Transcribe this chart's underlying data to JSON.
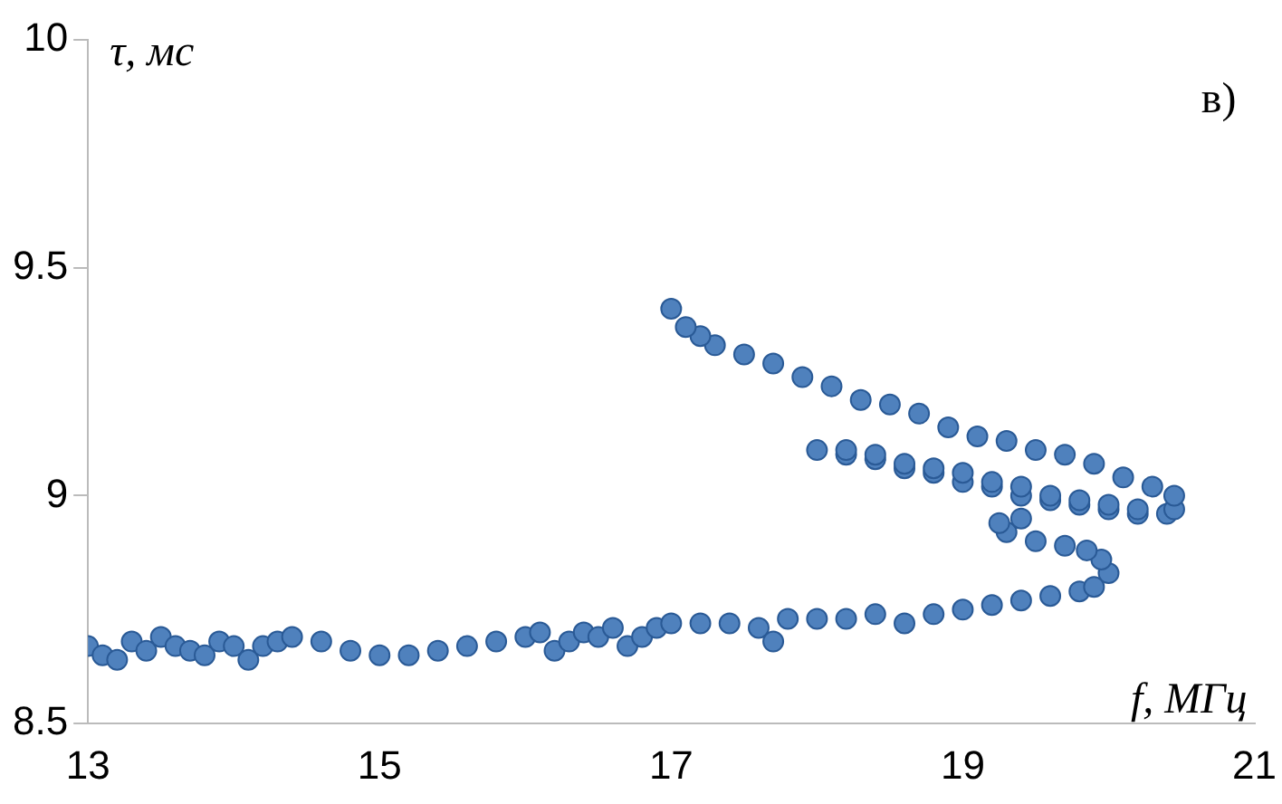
{
  "chart_data": {
    "type": "scatter",
    "xlabel": "f, МГц",
    "ylabel": "τ, мс",
    "annotations": [
      "в)"
    ],
    "xlim": [
      13,
      21
    ],
    "xticks": [
      13,
      15,
      17,
      19,
      21
    ],
    "ylim": [
      8.5,
      10
    ],
    "yticks": [
      8.5,
      9,
      9.5,
      10
    ],
    "grid": false,
    "legend": false,
    "marker": "circle",
    "series": [
      {
        "color": "#4f81bd",
        "x": [
          13.0,
          13.1,
          13.2,
          13.3,
          13.4,
          13.5,
          13.6,
          13.7,
          13.8,
          13.9,
          14.0,
          14.1,
          14.2,
          14.3,
          14.4,
          14.6,
          14.8,
          15.0,
          15.2,
          15.4,
          15.6,
          15.8,
          16.0,
          16.1,
          16.2,
          16.3,
          16.4,
          16.5,
          16.6,
          16.7,
          16.8,
          16.9,
          17.0,
          17.2,
          17.4,
          17.6,
          17.7,
          17.8,
          18.0,
          18.2,
          18.4,
          18.6,
          18.8,
          19.0,
          19.2,
          19.4,
          19.6,
          19.8,
          19.9,
          20.0,
          19.95,
          19.85,
          19.7,
          19.5,
          19.3,
          19.25,
          19.4,
          20.4,
          20.2,
          20.0,
          19.8,
          19.6,
          19.4,
          19.2,
          19.0,
          18.8,
          18.6,
          18.4,
          18.2,
          18.0,
          18.2,
          18.4,
          18.6,
          18.8,
          19.0,
          19.2,
          19.4,
          19.6,
          19.8,
          20.0,
          20.2,
          20.45,
          20.45,
          20.3,
          20.1,
          19.9,
          19.7,
          19.5,
          19.3,
          19.1,
          18.9,
          18.7,
          18.5,
          18.3,
          18.1,
          17.9,
          17.7,
          17.5,
          17.3,
          17.2,
          17.1,
          17.0
        ],
        "values": [
          8.67,
          8.65,
          8.64,
          8.68,
          8.66,
          8.69,
          8.67,
          8.66,
          8.65,
          8.68,
          8.67,
          8.64,
          8.67,
          8.68,
          8.69,
          8.68,
          8.66,
          8.65,
          8.65,
          8.66,
          8.67,
          8.68,
          8.69,
          8.7,
          8.66,
          8.68,
          8.7,
          8.69,
          8.71,
          8.67,
          8.69,
          8.71,
          8.72,
          8.72,
          8.72,
          8.71,
          8.68,
          8.73,
          8.73,
          8.73,
          8.74,
          8.72,
          8.74,
          8.75,
          8.76,
          8.77,
          8.78,
          8.79,
          8.8,
          8.83,
          8.86,
          8.88,
          8.89,
          8.9,
          8.92,
          8.94,
          8.95,
          8.96,
          8.96,
          8.97,
          8.98,
          8.99,
          9.0,
          9.02,
          9.03,
          9.05,
          9.06,
          9.08,
          9.09,
          9.1,
          9.1,
          9.09,
          9.07,
          9.06,
          9.05,
          9.03,
          9.02,
          9.0,
          8.99,
          8.98,
          8.97,
          8.97,
          9.0,
          9.02,
          9.04,
          9.07,
          9.09,
          9.1,
          9.12,
          9.13,
          9.15,
          9.18,
          9.2,
          9.21,
          9.24,
          9.26,
          9.29,
          9.31,
          9.33,
          9.35,
          9.37,
          9.41
        ]
      }
    ]
  }
}
